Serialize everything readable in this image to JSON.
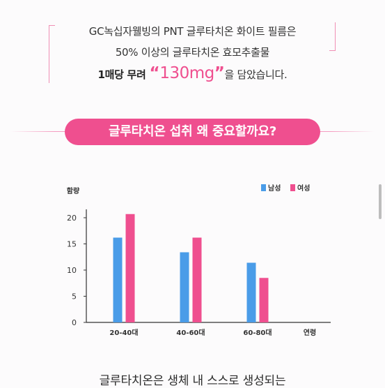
{
  "intro": {
    "line1": "GC녹십자웰빙의 PNT 글루타치온 화이트 필름은",
    "line2": "50% 이상의 글루타치온 효모추출물",
    "line3_pre": "1매당 무려 ",
    "line3_open_quote": "“",
    "line3_value": "130mg",
    "line3_close_quote": "”",
    "line3_post": "을 담았습니다."
  },
  "section": {
    "title": "글루타치온 섭취 왜 중요할까요?"
  },
  "chart_data": {
    "type": "bar",
    "ylabel": "함량",
    "xlabel": "연령",
    "categories": [
      "20-40대",
      "40-60대",
      "60-80대"
    ],
    "series": [
      {
        "name": "남성",
        "color": "#4a9ce8",
        "values": [
          16.2,
          13.4,
          11.4
        ]
      },
      {
        "name": "여성",
        "color": "#ef4f8f",
        "values": [
          20.7,
          16.2,
          8.5
        ]
      }
    ],
    "ylim": [
      0,
      20
    ],
    "yticks": [
      0,
      5,
      10,
      15,
      20
    ],
    "legend": "top-right",
    "grid": false
  },
  "bottom": {
    "text": "글루타치온은 생체 내 스스로 생성되는"
  }
}
